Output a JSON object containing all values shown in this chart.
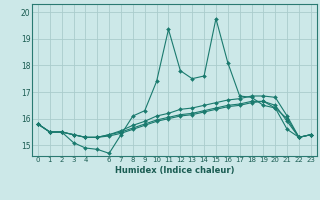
{
  "title": "",
  "xlabel": "Humidex (Indice chaleur)",
  "bg_color": "#cce8e8",
  "grid_color": "#aacccc",
  "line_color": "#1a7a6e",
  "xlim": [
    -0.5,
    23.5
  ],
  "ylim": [
    14.6,
    20.3
  ],
  "yticks": [
    15,
    16,
    17,
    18,
    19,
    20
  ],
  "series": [
    [
      15.8,
      15.5,
      15.5,
      15.1,
      14.9,
      14.85,
      14.7,
      15.4,
      16.1,
      16.3,
      17.4,
      19.35,
      17.8,
      17.5,
      17.6,
      19.75,
      18.1,
      16.85,
      16.8,
      16.5,
      16.4,
      16.0,
      15.3,
      15.4
    ],
    [
      15.8,
      15.5,
      15.5,
      15.4,
      15.3,
      15.3,
      15.4,
      15.55,
      15.75,
      15.9,
      16.1,
      16.2,
      16.35,
      16.4,
      16.5,
      16.6,
      16.7,
      16.75,
      16.85,
      16.85,
      16.8,
      16.1,
      15.3,
      15.4
    ],
    [
      15.8,
      15.5,
      15.5,
      15.4,
      15.3,
      15.3,
      15.4,
      15.5,
      15.65,
      15.8,
      15.95,
      16.05,
      16.15,
      16.2,
      16.3,
      16.4,
      16.5,
      16.55,
      16.65,
      16.65,
      16.5,
      15.9,
      15.3,
      15.4
    ],
    [
      15.8,
      15.5,
      15.5,
      15.4,
      15.3,
      15.3,
      15.35,
      15.45,
      15.6,
      15.75,
      15.9,
      16.0,
      16.1,
      16.15,
      16.25,
      16.35,
      16.45,
      16.5,
      16.6,
      16.65,
      16.4,
      15.6,
      15.3,
      15.4
    ]
  ]
}
